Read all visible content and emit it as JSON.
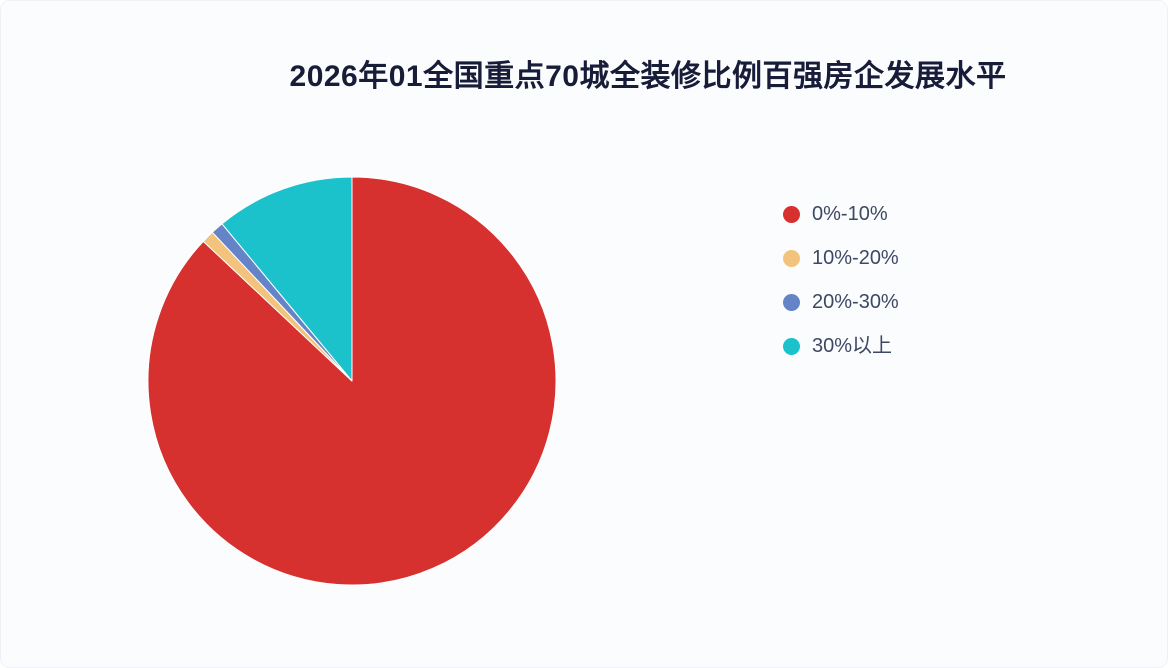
{
  "page": {
    "background": "#fbfcfe",
    "title_color": "#171c38",
    "legend_text_color": "#3d4862",
    "slice_border_color": "#ffffff"
  },
  "chart_data": {
    "type": "pie",
    "title": "2026年01全国重点70城全装修比例百强房企发展水平",
    "categories": [
      "0%-10%",
      "10%-20%",
      "20%-30%",
      "30%以上"
    ],
    "values": [
      87,
      1,
      1,
      11
    ],
    "values_are_percent": true,
    "colors": [
      "#d6302f",
      "#f2c37d",
      "#6584c7",
      "#1bc2cb"
    ],
    "start_angle": "top",
    "direction": "clockwise",
    "legend_position": "right",
    "data_labels_shown": false
  }
}
